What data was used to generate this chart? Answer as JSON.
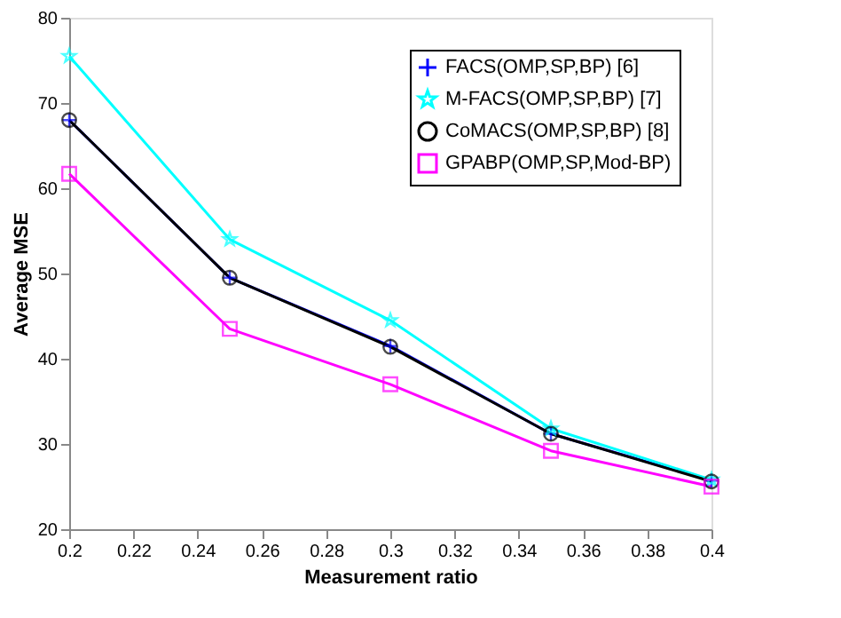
{
  "chart_data": {
    "type": "line",
    "xlabel": "Measurement ratio",
    "ylabel": "Average MSE",
    "x": [
      0.2,
      0.25,
      0.3,
      0.35,
      0.4
    ],
    "series": [
      {
        "name": "FACS(OMP,SP,BP) [6]",
        "color": "#0000ff",
        "marker": "cross",
        "values": [
          68,
          49.5,
          41.5,
          31.2,
          25.7
        ]
      },
      {
        "name": "M-FACS(OMP,SP,BP) [7]",
        "color": "#00ffff",
        "marker": "star",
        "values": [
          75.5,
          54,
          44.5,
          31.8,
          25.8
        ]
      },
      {
        "name": "CoMACS(OMP,SP,BP) [8]",
        "color": "#000000",
        "marker": "circle",
        "values": [
          68,
          49.5,
          41.4,
          31.2,
          25.6
        ]
      },
      {
        "name": "GPABP(OMP,SP,Mod-BP)",
        "color": "#ff00ff",
        "marker": "square",
        "values": [
          61.7,
          43.5,
          37,
          29.2,
          25
        ]
      }
    ],
    "xlim": [
      0.2,
      0.4
    ],
    "xticks": [
      0.2,
      0.22,
      0.24,
      0.26,
      0.28,
      0.3,
      0.32,
      0.34,
      0.36,
      0.38,
      0.4
    ],
    "ylim": [
      20,
      80
    ],
    "yticks": [
      20,
      30,
      40,
      50,
      60,
      70,
      80
    ],
    "grid": false,
    "legend": "top right",
    "line_style": "solid"
  }
}
